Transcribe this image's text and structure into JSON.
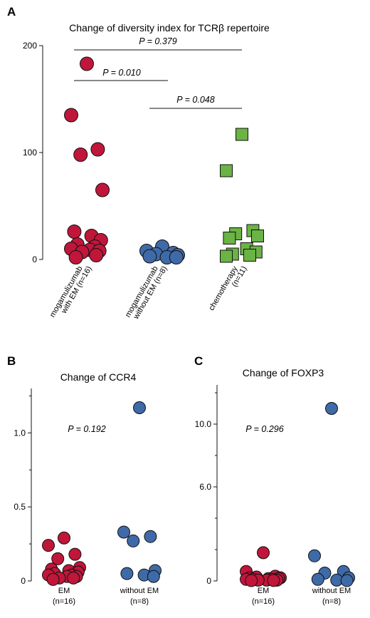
{
  "chart_data": [
    {
      "panel": "A",
      "type": "scatter",
      "title": "Change of diversity index for TCRβ repertoire",
      "categories": [
        "mogamulizumab\nwith EM (n=16)",
        "mogamulizumab\nwithout EM (n=8)",
        "chemotherapy\n(n=11)"
      ],
      "y_ticks": [
        0,
        100,
        200
      ],
      "ylim": [
        0,
        200
      ],
      "series": [
        {
          "values": [
            183,
            135,
            103,
            98,
            65,
            26,
            22,
            18,
            14,
            12,
            10,
            9,
            8,
            7,
            4,
            2
          ],
          "marker": "circle",
          "color": "#c0163a"
        },
        {
          "values": [
            12,
            8,
            6,
            5,
            4,
            3,
            2,
            2
          ],
          "marker": "circle",
          "color": "#3f6aa8"
        },
        {
          "values": [
            117,
            83,
            27,
            24,
            22,
            20,
            10,
            7,
            5,
            4,
            3
          ],
          "marker": "square",
          "color": "#6ab344"
        }
      ],
      "annotations": [
        {
          "text": "P = 0.379",
          "from": 0,
          "to": 2
        },
        {
          "text": "P = 0.010",
          "from": 0,
          "to": 1
        },
        {
          "text": "P = 0.048",
          "from": 1,
          "to": 2
        }
      ]
    },
    {
      "panel": "B",
      "type": "scatter",
      "title": "Change of CCR4",
      "categories": [
        "EM\n(n=16)",
        "without EM\n(n=8)"
      ],
      "y_ticks": [
        "0",
        "0.5",
        "1.0"
      ],
      "ylim": [
        0,
        1.3
      ],
      "series": [
        {
          "values": [
            0.29,
            0.24,
            0.18,
            0.15,
            0.09,
            0.08,
            0.07,
            0.06,
            0.05,
            0.04,
            0.04,
            0.03,
            0.03,
            0.02,
            0.02,
            0.01
          ],
          "marker": "circle",
          "color": "#c0163a"
        },
        {
          "values": [
            1.17,
            0.33,
            0.3,
            0.27,
            0.07,
            0.05,
            0.04,
            0.03
          ],
          "marker": "circle",
          "color": "#3f6aa8"
        }
      ],
      "annotations": [
        {
          "text": "P = 0.192"
        }
      ]
    },
    {
      "panel": "C",
      "type": "scatter",
      "title": "Change of FOXP3",
      "categories": [
        "EM\n(n=16)",
        "without EM\n(n=8)"
      ],
      "y_ticks": [
        "0",
        "6.0",
        "10.0"
      ],
      "ylim": [
        0,
        12.5
      ],
      "series": [
        {
          "values": [
            1.8,
            0.6,
            0.3,
            0.25,
            0.2,
            0.2,
            0.15,
            0.15,
            0.1,
            0.1,
            0.1,
            0.05,
            0.05,
            0.05,
            0.03,
            0.02
          ],
          "marker": "circle",
          "color": "#c0163a"
        },
        {
          "values": [
            11.0,
            1.6,
            0.6,
            0.5,
            0.2,
            0.1,
            0.05,
            0.02
          ],
          "marker": "circle",
          "color": "#3f6aa8"
        }
      ],
      "annotations": [
        {
          "text": "P = 0.296"
        }
      ]
    }
  ]
}
